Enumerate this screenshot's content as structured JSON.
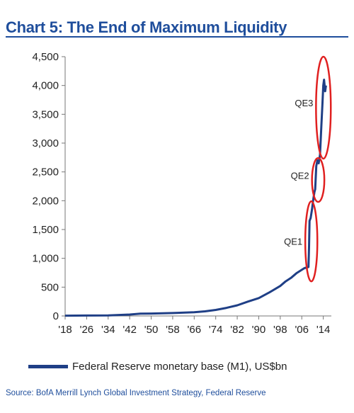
{
  "chart_data": {
    "type": "line",
    "title": "Chart 5: The End of Maximum Liquidity",
    "xlabel": "",
    "ylabel": "",
    "ylim": [
      0,
      4500
    ],
    "xlim": [
      1918,
      2017
    ],
    "yticks": [
      0,
      500,
      1000,
      1500,
      2000,
      2500,
      3000,
      3500,
      4000,
      4500
    ],
    "ytick_labels": [
      "0",
      "500",
      "1,000",
      "1,500",
      "2,000",
      "2,500",
      "3,000",
      "3,500",
      "4,000",
      "4,500"
    ],
    "xticks": [
      1918,
      1926,
      1934,
      1942,
      1950,
      1958,
      1966,
      1974,
      1982,
      1990,
      1998,
      2006,
      2014
    ],
    "xtick_labels": [
      "'18",
      "'26",
      "'34",
      "'42",
      "'50",
      "'58",
      "'66",
      "'74",
      "'82",
      "'90",
      "'98",
      "'06",
      "'14"
    ],
    "grid": false,
    "legend_position": "bottom",
    "series": [
      {
        "name": "Federal Reserve monetary base (M1), US$bn",
        "color": "#1f3f86",
        "x": [
          1918,
          1926,
          1934,
          1942,
          1946,
          1950,
          1958,
          1966,
          1970,
          1974,
          1978,
          1982,
          1986,
          1990,
          1994,
          1998,
          2000,
          2002,
          2004,
          2006,
          2007,
          2008.5,
          2008.7,
          2008.9,
          2009.3,
          2009.8,
          2010.2,
          2010.7,
          2011.0,
          2011.4,
          2011.8,
          2012.3,
          2012.8,
          2013.3,
          2013.7,
          2014.0,
          2014.3,
          2014.7,
          2015.0
        ],
        "y": [
          5,
          7,
          10,
          25,
          40,
          42,
          50,
          65,
          80,
          105,
          140,
          185,
          250,
          310,
          410,
          520,
          600,
          660,
          740,
          800,
          830,
          850,
          1200,
          1650,
          1700,
          1850,
          2000,
          2150,
          2200,
          2600,
          2700,
          2650,
          2800,
          3300,
          3700,
          4000,
          4100,
          3900,
          4000
        ]
      }
    ],
    "annotations": [
      {
        "label": "QE1",
        "x": 2008.5,
        "y": 1300,
        "x_range": [
          2007.3,
          2011.8
        ],
        "y_range": [
          600,
          1990
        ]
      },
      {
        "label": "QE2",
        "x": 2010.5,
        "y": 2440,
        "x_range": [
          2009.8,
          2014.4
        ],
        "y_range": [
          1980,
          2740
        ]
      },
      {
        "label": "QE3",
        "x": 2012.5,
        "y": 3700,
        "x_range": [
          2011.3,
          2016.8
        ],
        "y_range": [
          2730,
          4500
        ]
      }
    ]
  },
  "legend_label": "Federal Reserve monetary base (M1), US$bn",
  "source": "Source: BofA Merrill Lynch Global Investment Strategy, Federal Reserve"
}
